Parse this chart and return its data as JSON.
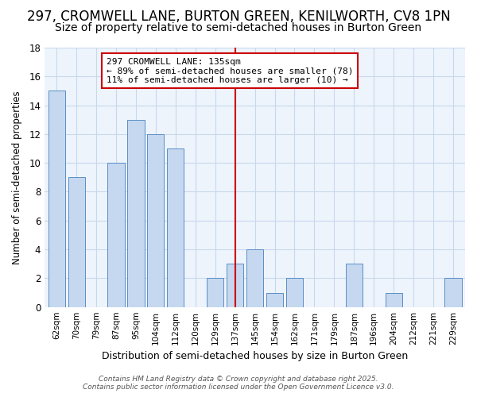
{
  "title1": "297, CROMWELL LANE, BURTON GREEN, KENILWORTH, CV8 1PN",
  "title2": "Size of property relative to semi-detached houses in Burton Green",
  "xlabel": "Distribution of semi-detached houses by size in Burton Green",
  "ylabel": "Number of semi-detached properties",
  "annotation_title": "297 CROMWELL LANE: 135sqm",
  "annotation_line1": "← 89% of semi-detached houses are smaller (78)",
  "annotation_line2": "11% of semi-detached houses are larger (10) →",
  "categories": [
    "62sqm",
    "70sqm",
    "79sqm",
    "87sqm",
    "95sqm",
    "104sqm",
    "112sqm",
    "120sqm",
    "129sqm",
    "137sqm",
    "145sqm",
    "154sqm",
    "162sqm",
    "171sqm",
    "179sqm",
    "187sqm",
    "196sqm",
    "204sqm",
    "212sqm",
    "221sqm",
    "229sqm"
  ],
  "values": [
    15,
    9,
    0,
    10,
    13,
    12,
    11,
    0,
    2,
    3,
    4,
    1,
    2,
    0,
    0,
    3,
    0,
    1,
    0,
    0,
    2
  ],
  "bar_color": "#c5d8f0",
  "bar_edge_color": "#5b8ec4",
  "vline_index": 9,
  "vline_color": "#cc0000",
  "ylim": [
    0,
    18
  ],
  "yticks": [
    0,
    2,
    4,
    6,
    8,
    10,
    12,
    14,
    16,
    18
  ],
  "bg_color": "#ffffff",
  "plot_bg_color": "#eef4fc",
  "footer": "Contains HM Land Registry data © Crown copyright and database right 2025.\nContains public sector information licensed under the Open Government Licence v3.0.",
  "title1_fontsize": 12,
  "title2_fontsize": 10,
  "annotation_box_color": "#cc0000",
  "gridcolor": "#c8d8ec"
}
